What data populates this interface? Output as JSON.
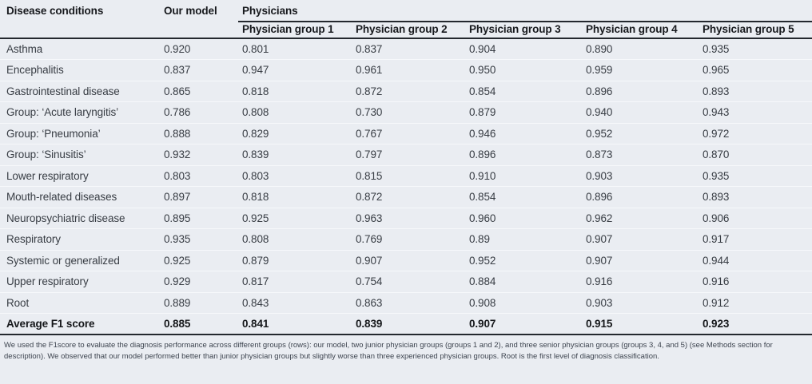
{
  "table": {
    "col_disease": "Disease conditions",
    "col_model": "Our model",
    "col_physicians": "Physicians",
    "group_headers": [
      "Physician group 1",
      "Physician group 2",
      "Physician group 3",
      "Physician group 4",
      "Physician group 5"
    ],
    "rows": [
      {
        "label": "Asthma",
        "values": [
          "0.920",
          "0.801",
          "0.837",
          "0.904",
          "0.890",
          "0.935"
        ]
      },
      {
        "label": "Encephalitis",
        "values": [
          "0.837",
          "0.947",
          "0.961",
          "0.950",
          "0.959",
          "0.965"
        ]
      },
      {
        "label": "Gastrointestinal disease",
        "values": [
          "0.865",
          "0.818",
          "0.872",
          "0.854",
          "0.896",
          "0.893"
        ]
      },
      {
        "label": "Group: ‘Acute laryngitis’",
        "values": [
          "0.786",
          "0.808",
          "0.730",
          "0.879",
          "0.940",
          "0.943"
        ]
      },
      {
        "label": "Group: ‘Pneumonia’",
        "values": [
          "0.888",
          "0.829",
          "0.767",
          "0.946",
          "0.952",
          "0.972"
        ]
      },
      {
        "label": "Group: ‘Sinusitis’",
        "values": [
          "0.932",
          "0.839",
          "0.797",
          "0.896",
          "0.873",
          "0.870"
        ]
      },
      {
        "label": "Lower respiratory",
        "values": [
          "0.803",
          "0.803",
          "0.815",
          "0.910",
          "0.903",
          "0.935"
        ]
      },
      {
        "label": "Mouth-related diseases",
        "values": [
          "0.897",
          "0.818",
          "0.872",
          "0.854",
          "0.896",
          "0.893"
        ]
      },
      {
        "label": "Neuropsychiatric disease",
        "values": [
          "0.895",
          "0.925",
          "0.963",
          "0.960",
          "0.962",
          "0.906"
        ]
      },
      {
        "label": "Respiratory",
        "values": [
          "0.935",
          "0.808",
          "0.769",
          "0.89",
          "0.907",
          "0.917"
        ]
      },
      {
        "label": "Systemic or generalized",
        "values": [
          "0.925",
          "0.879",
          "0.907",
          "0.952",
          "0.907",
          "0.944"
        ]
      },
      {
        "label": "Upper respiratory",
        "values": [
          "0.929",
          "0.817",
          "0.754",
          "0.884",
          "0.916",
          "0.916"
        ]
      },
      {
        "label": "Root",
        "values": [
          "0.889",
          "0.843",
          "0.863",
          "0.908",
          "0.903",
          "0.912"
        ]
      }
    ],
    "average_row": {
      "label": "Average F1 score",
      "values": [
        "0.885",
        "0.841",
        "0.839",
        "0.907",
        "0.915",
        "0.923"
      ]
    }
  },
  "footnote": "We used the F1score to evaluate the diagnosis performance across different groups (rows): our model, two junior physician groups (groups 1 and 2), and three senior physician groups (groups 3, 4, and 5) (see Methods section for description). We observed that our model performed better than junior physician groups but slightly worse than three experienced physician groups. Root is the first level of diagnosis classification.",
  "colors": {
    "background": "#eaedf2",
    "rule_dark": "#24282e",
    "row_separator": "#f6f8fb",
    "text_body": "#383d44",
    "text_header": "#17191d",
    "text_footnote": "#3d444f"
  }
}
